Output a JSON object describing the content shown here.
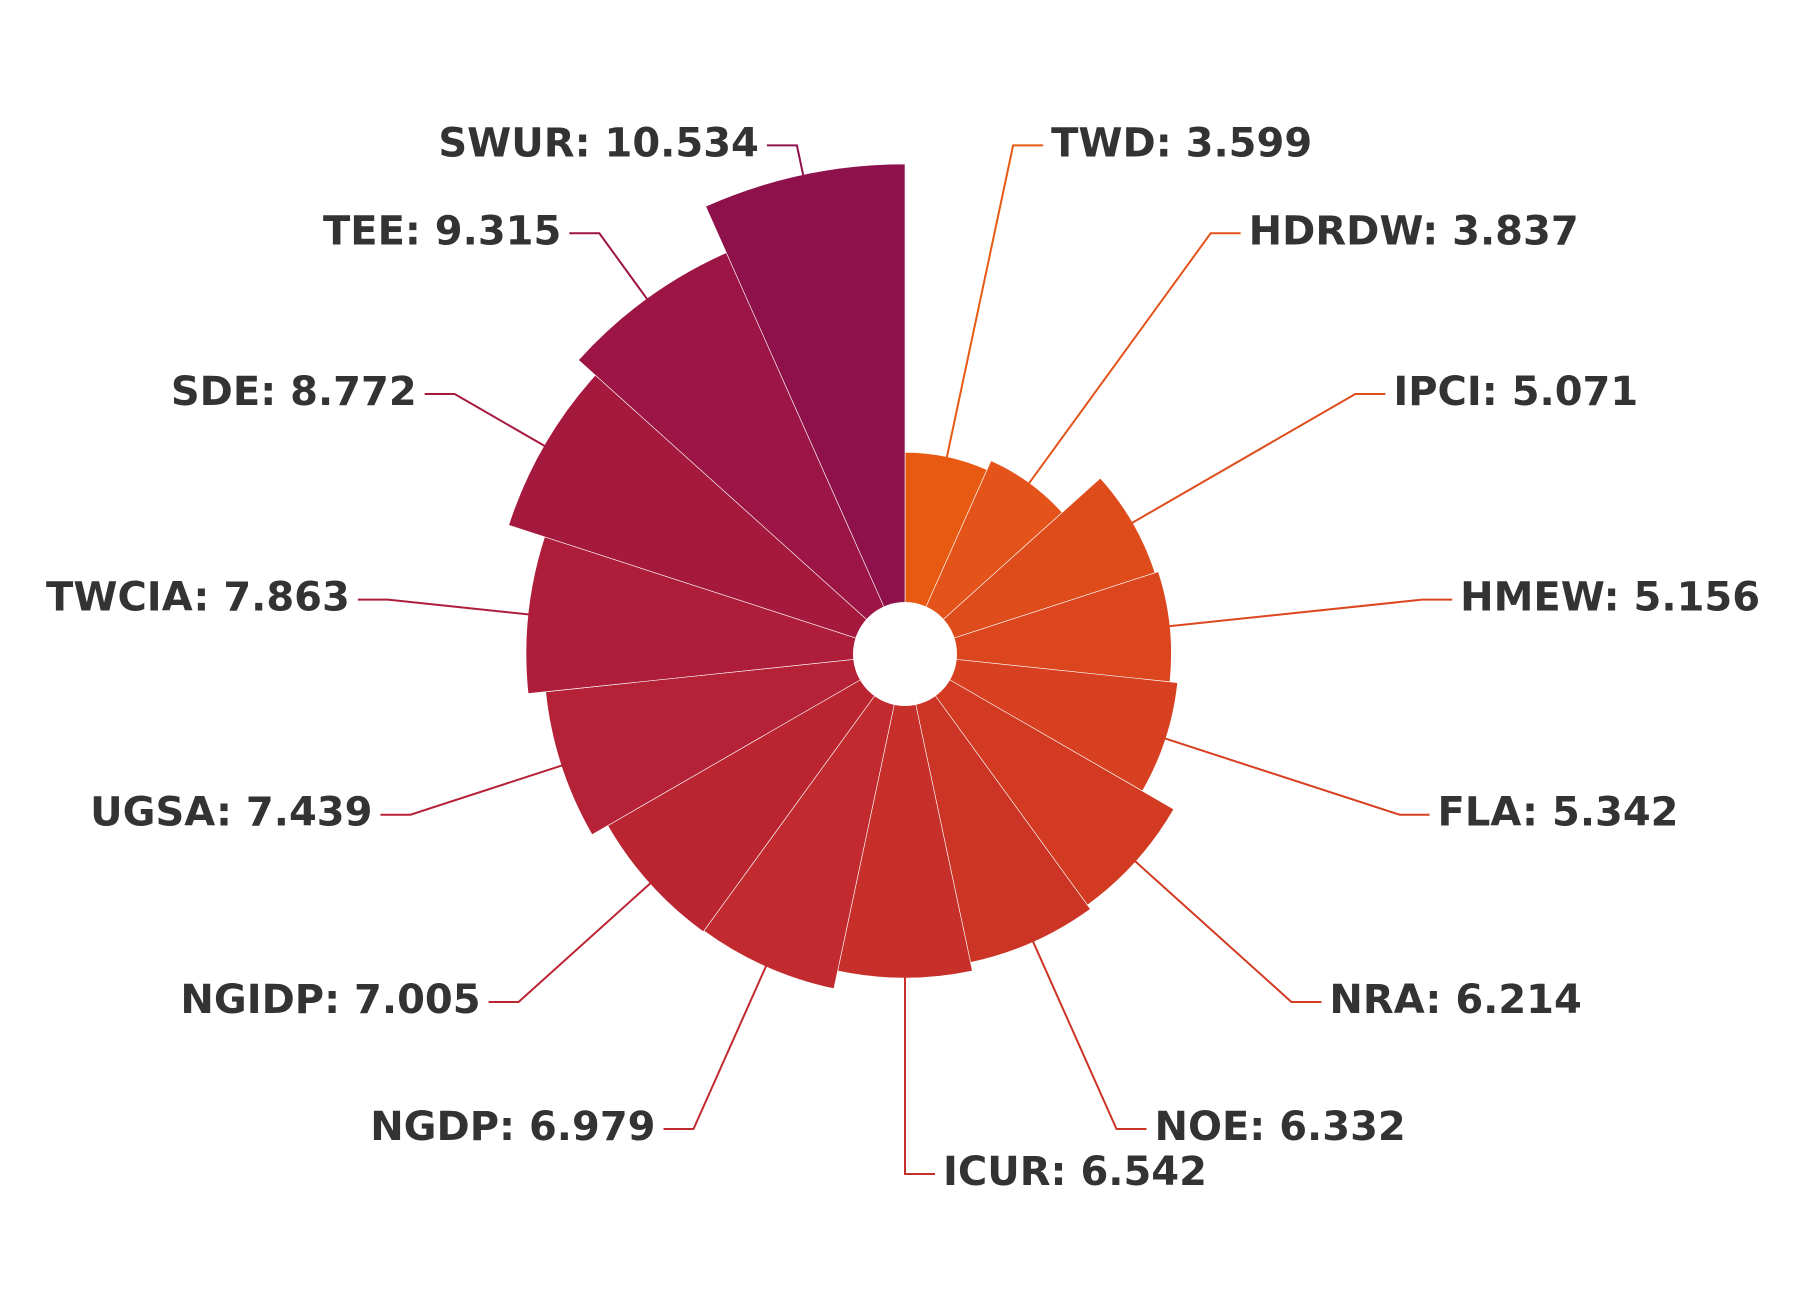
{
  "chart_data": {
    "type": "rose",
    "values": [
      3.599,
      3.837,
      5.071,
      5.156,
      5.342,
      6.214,
      6.332,
      6.542,
      6.979,
      7.005,
      7.439,
      7.863,
      8.772,
      9.315,
      10.534
    ],
    "value_labels": [
      "TWD: 3.599",
      "HDRDW: 3.837",
      "IPCI: 5.071",
      "HMEW: 5.156",
      "FLA: 5.342",
      "NRA: 6.214",
      "NOE: 6.332",
      "ICUR: 6.542",
      "NGDP: 6.979",
      "NGIDP: 7.005",
      "UGSA: 7.439",
      "TWCIA: 7.863",
      "SDE: 8.772",
      "TEE: 9.315",
      "SWUR: 10.534"
    ],
    "colors": [
      "#e85a12",
      "#e4541a",
      "#df4c1c",
      "#db461e",
      "#d74020",
      "#d23a22",
      "#cc3426",
      "#c72f2a",
      "#c12a2e",
      "#bb2532",
      "#b52136",
      "#ae1d3a",
      "#a6193f",
      "#9c1545",
      "#8f114c"
    ]
  }
}
